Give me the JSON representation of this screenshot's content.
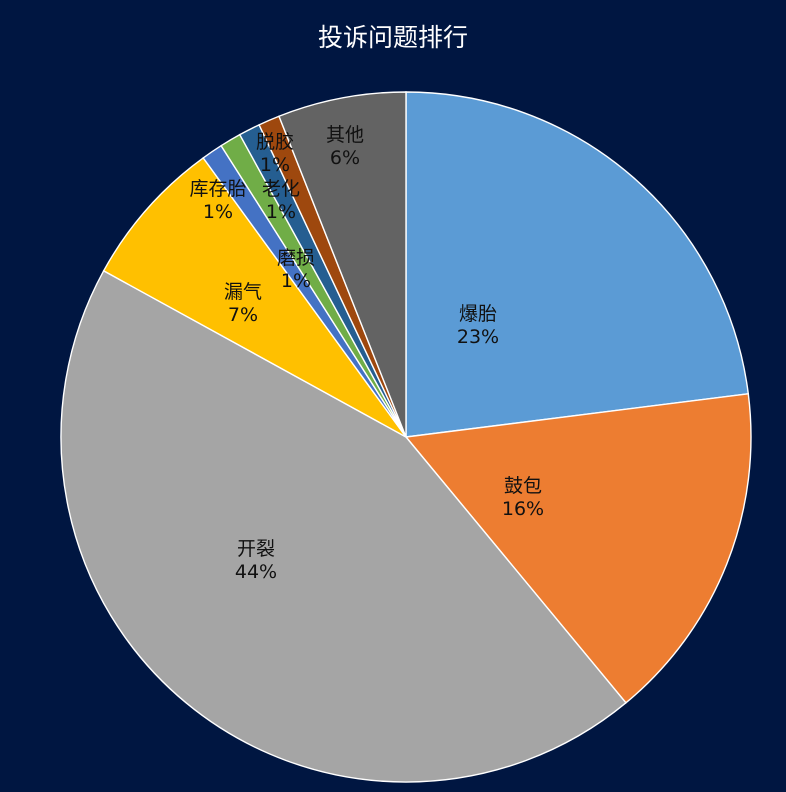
{
  "chart_data": {
    "type": "pie",
    "title": "投诉问题排行",
    "categories": [
      "爆胎",
      "鼓包",
      "开裂",
      "漏气",
      "库存胎",
      "磨损",
      "老化",
      "脱胶",
      "其他"
    ],
    "values": [
      23,
      16,
      44,
      7,
      1,
      1,
      1,
      1,
      6
    ],
    "value_labels": [
      "23%",
      "16%",
      "44%",
      "7%",
      "1%",
      "1%",
      "1%",
      "1%",
      "6%"
    ],
    "colors": [
      "#5B9BD5",
      "#ED7D31",
      "#A5A5A5",
      "#FFC000",
      "#4472C4",
      "#70AD47",
      "#255E91",
      "#9E480E",
      "#636363"
    ],
    "start_angle": "12 o'clock",
    "direction": "clockwise",
    "legend": "none"
  },
  "page": {
    "background": "#001641",
    "title_color": "#FFFFFF"
  }
}
